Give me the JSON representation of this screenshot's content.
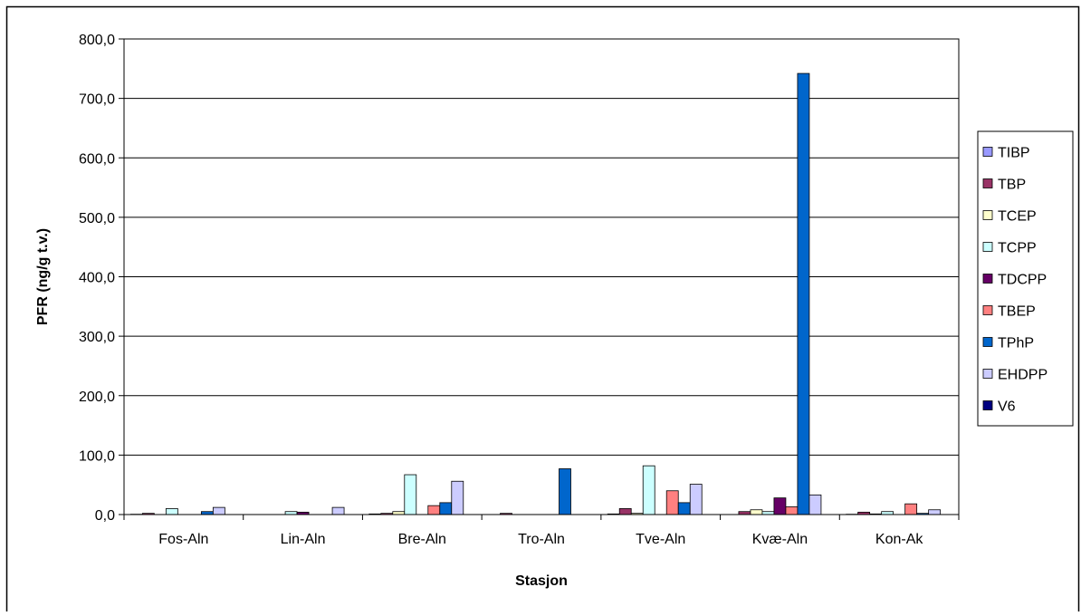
{
  "chart_data": {
    "type": "bar",
    "title": "",
    "xlabel": "Stasjon",
    "ylabel": "PFR (ng/g t.v.)",
    "ylim": [
      0,
      800
    ],
    "yticks": [
      "0,0",
      "100,0",
      "200,0",
      "300,0",
      "400,0",
      "500,0",
      "600,0",
      "700,0",
      "800,0"
    ],
    "grid": "horizontal",
    "legend_position": "right",
    "categories": [
      "Fos-Aln",
      "Lin-Aln",
      "Bre-Aln",
      "Tro-Aln",
      "Tve-Aln",
      "Kvæ-Aln",
      "Kon-Ak"
    ],
    "series": [
      {
        "name": "TIBP",
        "color": "#9999ff",
        "values": [
          0.5,
          0,
          1,
          0,
          1,
          0,
          0.5
        ]
      },
      {
        "name": "TBP",
        "color": "#993366",
        "values": [
          2,
          0,
          2,
          2,
          10,
          5,
          4
        ]
      },
      {
        "name": "TCEP",
        "color": "#ffffcc",
        "values": [
          0,
          0,
          5,
          0,
          2,
          8,
          1
        ]
      },
      {
        "name": "TCPP",
        "color": "#ccffff",
        "values": [
          10,
          5,
          67,
          0,
          82,
          5,
          5
        ]
      },
      {
        "name": "TDCPP",
        "color": "#660066",
        "values": [
          0,
          4,
          0,
          0,
          0,
          28,
          0
        ]
      },
      {
        "name": "TBEP",
        "color": "#ff8080",
        "values": [
          0,
          0,
          15,
          0,
          40,
          13,
          18
        ]
      },
      {
        "name": "TPhP",
        "color": "#0066cc",
        "values": [
          5,
          0,
          20,
          77,
          20,
          742,
          2
        ]
      },
      {
        "name": "EHDPP",
        "color": "#ccccff",
        "values": [
          12,
          12,
          56,
          0,
          51,
          33,
          8
        ]
      },
      {
        "name": "V6",
        "color": "#000080",
        "values": [
          0,
          0,
          0,
          0,
          0,
          0,
          0
        ]
      }
    ]
  }
}
